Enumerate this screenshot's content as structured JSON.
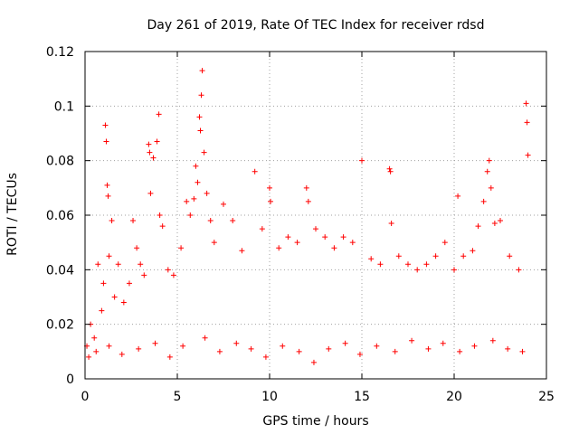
{
  "chart_data": {
    "type": "scatter",
    "title": "Day 261 of 2019, Rate Of TEC Index for receiver rdsd",
    "xlabel": "GPS time / hours",
    "ylabel": "ROTI / TECUs",
    "xlim": [
      0,
      25
    ],
    "ylim": [
      0,
      0.12
    ],
    "x_ticks": [
      0,
      5,
      10,
      15,
      20,
      25
    ],
    "x_tick_labels": [
      "0",
      "5",
      "10",
      "15",
      "20",
      "25"
    ],
    "y_ticks": [
      0,
      0.02,
      0.04,
      0.06,
      0.08,
      0.1,
      0.12
    ],
    "y_tick_labels": [
      "0",
      "0.02",
      "0.04",
      "0.06",
      "0.08",
      "0.1",
      "0.12"
    ],
    "grid": true,
    "marker": "plus",
    "color": "#ff0000",
    "series": [
      {
        "name": "ROTI",
        "points": [
          [
            0.1,
            0.012
          ],
          [
            0.3,
            0.02
          ],
          [
            0.5,
            0.015
          ],
          [
            0.7,
            0.042
          ],
          [
            0.9,
            0.025
          ],
          [
            1.0,
            0.035
          ],
          [
            1.1,
            0.093
          ],
          [
            1.15,
            0.087
          ],
          [
            1.2,
            0.071
          ],
          [
            1.25,
            0.067
          ],
          [
            1.3,
            0.045
          ],
          [
            1.45,
            0.058
          ],
          [
            1.6,
            0.03
          ],
          [
            1.8,
            0.042
          ],
          [
            2.1,
            0.028
          ],
          [
            2.4,
            0.035
          ],
          [
            2.6,
            0.058
          ],
          [
            2.8,
            0.048
          ],
          [
            3.0,
            0.042
          ],
          [
            3.2,
            0.038
          ],
          [
            3.45,
            0.086
          ],
          [
            3.5,
            0.083
          ],
          [
            3.55,
            0.068
          ],
          [
            3.7,
            0.081
          ],
          [
            3.9,
            0.087
          ],
          [
            4.0,
            0.097
          ],
          [
            4.05,
            0.06
          ],
          [
            4.2,
            0.056
          ],
          [
            4.5,
            0.04
          ],
          [
            4.8,
            0.038
          ],
          [
            5.2,
            0.048
          ],
          [
            5.5,
            0.065
          ],
          [
            5.7,
            0.06
          ],
          [
            5.9,
            0.066
          ],
          [
            6.0,
            0.078
          ],
          [
            6.1,
            0.072
          ],
          [
            6.2,
            0.096
          ],
          [
            6.25,
            0.091
          ],
          [
            6.3,
            0.104
          ],
          [
            6.35,
            0.113
          ],
          [
            6.45,
            0.083
          ],
          [
            6.6,
            0.068
          ],
          [
            6.8,
            0.058
          ],
          [
            7.0,
            0.05
          ],
          [
            7.5,
            0.064
          ],
          [
            8.0,
            0.058
          ],
          [
            8.5,
            0.047
          ],
          [
            9.2,
            0.076
          ],
          [
            9.6,
            0.055
          ],
          [
            10.0,
            0.07
          ],
          [
            10.05,
            0.065
          ],
          [
            10.5,
            0.048
          ],
          [
            11.0,
            0.052
          ],
          [
            11.5,
            0.05
          ],
          [
            12.0,
            0.07
          ],
          [
            12.1,
            0.065
          ],
          [
            12.5,
            0.055
          ],
          [
            13.0,
            0.052
          ],
          [
            13.5,
            0.048
          ],
          [
            14.0,
            0.052
          ],
          [
            14.5,
            0.05
          ],
          [
            15.0,
            0.08
          ],
          [
            15.5,
            0.044
          ],
          [
            16.0,
            0.042
          ],
          [
            16.5,
            0.077
          ],
          [
            16.55,
            0.076
          ],
          [
            16.6,
            0.057
          ],
          [
            17.0,
            0.045
          ],
          [
            17.5,
            0.042
          ],
          [
            18.0,
            0.04
          ],
          [
            18.5,
            0.042
          ],
          [
            19.0,
            0.045
          ],
          [
            19.5,
            0.05
          ],
          [
            20.0,
            0.04
          ],
          [
            20.2,
            0.067
          ],
          [
            20.5,
            0.045
          ],
          [
            21.0,
            0.047
          ],
          [
            21.3,
            0.056
          ],
          [
            21.6,
            0.065
          ],
          [
            21.8,
            0.076
          ],
          [
            21.9,
            0.08
          ],
          [
            22.0,
            0.07
          ],
          [
            22.2,
            0.057
          ],
          [
            22.5,
            0.058
          ],
          [
            23.0,
            0.045
          ],
          [
            23.5,
            0.04
          ],
          [
            23.9,
            0.101
          ],
          [
            23.95,
            0.094
          ],
          [
            24.0,
            0.082
          ],
          [
            0.2,
            0.008
          ],
          [
            0.6,
            0.01
          ],
          [
            1.3,
            0.012
          ],
          [
            2.0,
            0.009
          ],
          [
            2.9,
            0.011
          ],
          [
            3.8,
            0.013
          ],
          [
            4.6,
            0.008
          ],
          [
            5.3,
            0.012
          ],
          [
            6.5,
            0.015
          ],
          [
            7.3,
            0.01
          ],
          [
            8.2,
            0.013
          ],
          [
            9.0,
            0.011
          ],
          [
            9.8,
            0.008
          ],
          [
            10.7,
            0.012
          ],
          [
            11.6,
            0.01
          ],
          [
            12.4,
            0.006
          ],
          [
            13.2,
            0.011
          ],
          [
            14.1,
            0.013
          ],
          [
            14.9,
            0.009
          ],
          [
            15.8,
            0.012
          ],
          [
            16.8,
            0.01
          ],
          [
            17.7,
            0.014
          ],
          [
            18.6,
            0.011
          ],
          [
            19.4,
            0.013
          ],
          [
            20.3,
            0.01
          ],
          [
            21.1,
            0.012
          ],
          [
            22.1,
            0.014
          ],
          [
            22.9,
            0.011
          ],
          [
            23.7,
            0.01
          ]
        ]
      }
    ]
  }
}
